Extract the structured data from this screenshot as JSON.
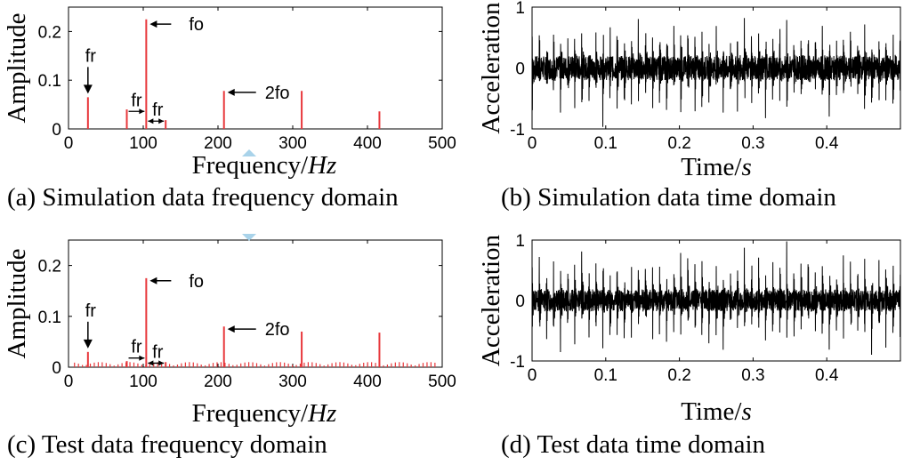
{
  "chart_data": [
    {
      "type": "bar",
      "panel": "a",
      "caption": "(a) Simulation data frequency domain",
      "xlabel": "Frequency/",
      "xlabel_unit": "Hz",
      "ylabel": "Amplitude",
      "xlim": [
        0,
        500
      ],
      "ylim": [
        0,
        0.25
      ],
      "xticks": [
        0,
        100,
        200,
        300,
        400,
        500
      ],
      "yticks": [
        0,
        0.1,
        0.2
      ],
      "ytick_labels": [
        "0",
        "0.1",
        "0.2"
      ],
      "color": "#e8383c",
      "x": [
        26,
        78,
        104,
        130,
        208,
        312,
        416
      ],
      "y": [
        0.065,
        0.04,
        0.225,
        0.018,
        0.078,
        0.078,
        0.036
      ],
      "annotations": [
        {
          "text": "fr",
          "target": "spike-26"
        },
        {
          "text": "fr",
          "target": "gap-78-104"
        },
        {
          "text": "fr",
          "target": "gap-104-130"
        },
        {
          "text": "fo",
          "target": "spike-104"
        },
        {
          "text": "2fo",
          "target": "spike-208"
        }
      ]
    },
    {
      "type": "line",
      "panel": "b",
      "caption": "(b) Simulation data time domain",
      "xlabel": "Time/",
      "xlabel_unit": "s",
      "ylabel": "Acceleration",
      "xlim": [
        0,
        0.5
      ],
      "ylim": [
        -1,
        1
      ],
      "xticks": [
        0,
        0.1,
        0.2,
        0.3,
        0.4
      ],
      "xtick_labels": [
        "0",
        "0.1",
        "0.2",
        "0.3",
        "0.4"
      ],
      "yticks": [
        -1,
        0,
        1
      ],
      "ytick_labels": [
        "-1",
        "0",
        "1"
      ],
      "color": "#000000",
      "impulse_period": 0.0096,
      "impulse_peak": 0.8,
      "noise_level": 0.2
    },
    {
      "type": "bar",
      "panel": "c",
      "caption": "(c) Test data frequency domain",
      "xlabel": "Frequency/",
      "xlabel_unit": "Hz",
      "ylabel": "Amplitude",
      "xlim": [
        0,
        500
      ],
      "ylim": [
        0,
        0.25
      ],
      "xticks": [
        0,
        100,
        200,
        300,
        400,
        500
      ],
      "yticks": [
        0,
        0.1,
        0.2
      ],
      "ytick_labels": [
        "0",
        "0.1",
        "0.2"
      ],
      "color": "#e8383c",
      "x": [
        26,
        78,
        104,
        130,
        208,
        312,
        416
      ],
      "y": [
        0.03,
        0.012,
        0.175,
        0.01,
        0.08,
        0.07,
        0.068
      ],
      "noise_floor": 0.01,
      "annotations": [
        {
          "text": "fr",
          "target": "spike-26"
        },
        {
          "text": "fr",
          "target": "gap-78-104"
        },
        {
          "text": "fr",
          "target": "gap-104-130"
        },
        {
          "text": "fo",
          "target": "spike-104"
        },
        {
          "text": "2fo",
          "target": "spike-208"
        }
      ]
    },
    {
      "type": "line",
      "panel": "d",
      "caption": "(d) Test data time domain",
      "xlabel": "Time/",
      "xlabel_unit": "s",
      "ylabel": "Acceleration",
      "xlim": [
        0,
        0.5
      ],
      "ylim": [
        -1,
        1
      ],
      "xticks": [
        0,
        0.1,
        0.2,
        0.3,
        0.4
      ],
      "xtick_labels": [
        "0",
        "0.1",
        "0.2",
        "0.3",
        "0.4"
      ],
      "yticks": [
        -1,
        0,
        1
      ],
      "ytick_labels": [
        "-1",
        "0",
        "1"
      ],
      "color": "#000000",
      "impulse_period": 0.0096,
      "impulse_peak": 0.85,
      "noise_level": 0.18
    }
  ]
}
